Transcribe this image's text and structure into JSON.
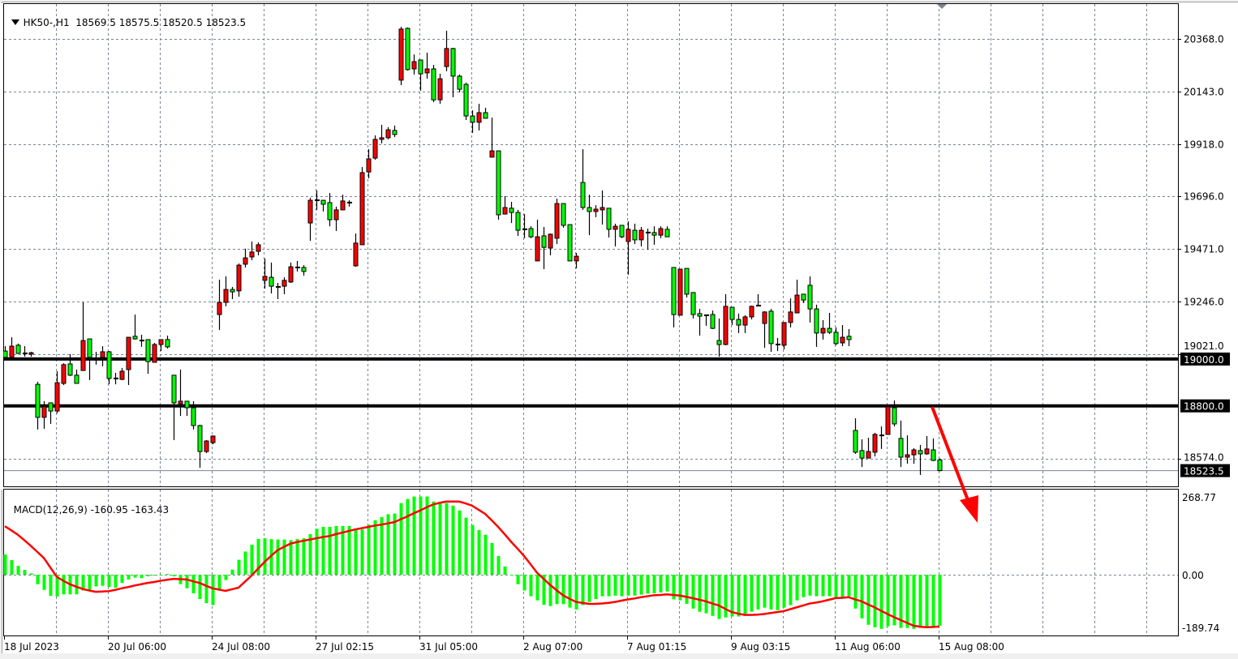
{
  "header": {
    "symbol_timeframe": "HK50-,H1",
    "ohlc": "18569.5 18575.5 18520.5 18523.5"
  },
  "macd_header": {
    "label": "MACD(12,26,9)",
    "main": "-160.95",
    "signal": "-163.43"
  },
  "chart_data": [
    {
      "type": "candlestick",
      "symbol": "HK50-",
      "timeframe": "H1",
      "bull_color": "#ff0000",
      "bear_color": "#00ff00",
      "grid": true,
      "price_ticks": [
        "20368.0",
        "20143.0",
        "19918.0",
        "19696.0",
        "19471.0",
        "19246.0",
        "19021.0",
        "18574.0"
      ],
      "horizontal_lines": [
        {
          "price": 19000,
          "label": "19000.0"
        },
        {
          "price": 18800,
          "label": "18800.0"
        }
      ],
      "last_price": {
        "price": 18523.5,
        "label": "18523.5"
      },
      "time_labels": [
        {
          "bar": 0,
          "text": "18 Jul 2023"
        },
        {
          "bar": 16,
          "text": "20 Jul 06:00"
        },
        {
          "bar": 32,
          "text": "24 Jul 08:00"
        },
        {
          "bar": 48,
          "text": "27 Jul 02:15"
        },
        {
          "bar": 64,
          "text": "31 Jul 05:00"
        },
        {
          "bar": 80,
          "text": "2 Aug 07:00"
        },
        {
          "bar": 96,
          "text": "7 Aug 01:15"
        },
        {
          "bar": 112,
          "text": "9 Aug 03:15"
        },
        {
          "bar": 128,
          "text": "11 Aug 06:00"
        },
        {
          "bar": 144,
          "text": "15 Aug 08:00"
        }
      ],
      "ohlc_fields": [
        "open",
        "high",
        "low",
        "close"
      ],
      "candles": [
        [
          19034,
          19055,
          19007,
          19007
        ],
        [
          19007,
          19093,
          19007,
          19055
        ],
        [
          19059,
          19066,
          19021,
          19024
        ],
        [
          19024,
          19055,
          19010,
          19024
        ],
        [
          19021,
          19031,
          19010,
          19027
        ],
        [
          18892,
          18903,
          18699,
          18751
        ],
        [
          18751,
          18820,
          18702,
          18796
        ],
        [
          18813,
          18813,
          18723,
          18778
        ],
        [
          18778,
          18948,
          18768,
          18899
        ],
        [
          18896,
          18982,
          18889,
          18976
        ],
        [
          18979,
          19021,
          18927,
          18931
        ],
        [
          18931,
          18955,
          18896,
          18896
        ],
        [
          18951,
          19242,
          18951,
          19079
        ],
        [
          19086,
          19086,
          18910,
          19007
        ],
        [
          19003,
          19031,
          18976,
          19002
        ],
        [
          19007,
          19055,
          18969,
          19031
        ],
        [
          19031,
          19034,
          18892,
          18917
        ],
        [
          18917,
          18941,
          18892,
          18917
        ],
        [
          18913,
          18962,
          18910,
          18948
        ],
        [
          18955,
          19093,
          18889,
          19093
        ],
        [
          19097,
          19190,
          19083,
          19086
        ],
        [
          19079,
          19104,
          19052,
          19079
        ],
        [
          19083,
          19083,
          18937,
          18989
        ],
        [
          18986,
          19069,
          18986,
          19062
        ],
        [
          19062,
          19083,
          19034,
          19083
        ],
        [
          19083,
          19100,
          19045,
          19052
        ],
        [
          18931,
          18931,
          18654,
          18813
        ],
        [
          18809,
          18955,
          18757,
          18820
        ],
        [
          18820,
          18820,
          18757,
          18792
        ],
        [
          18792,
          18820,
          18699,
          18716
        ],
        [
          18716,
          18719,
          18536,
          18605
        ],
        [
          18605,
          18654,
          18598,
          18650
        ],
        [
          18643,
          18674,
          18636,
          18671
        ],
        [
          19190,
          19339,
          19124,
          19242
        ],
        [
          19242,
          19353,
          19225,
          19297
        ],
        [
          19297,
          19308,
          19256,
          19287
        ],
        [
          19291,
          19408,
          19266,
          19401
        ],
        [
          19405,
          19471,
          19391,
          19432
        ],
        [
          19436,
          19502,
          19422,
          19457
        ],
        [
          19460,
          19498,
          19443,
          19488
        ],
        [
          19336,
          19429,
          19301,
          19353
        ],
        [
          19349,
          19412,
          19280,
          19311
        ],
        [
          19308,
          19325,
          19256,
          19308
        ],
        [
          19311,
          19349,
          19277,
          19336
        ],
        [
          19329,
          19412,
          19325,
          19394
        ],
        [
          19391,
          19419,
          19374,
          19391
        ],
        [
          19391,
          19401,
          19356,
          19374
        ],
        [
          19581,
          19689,
          19505,
          19678
        ],
        [
          19678,
          19720,
          19637,
          19678
        ],
        [
          19678,
          19678,
          19630,
          19661
        ],
        [
          19668,
          19709,
          19567,
          19595
        ],
        [
          19595,
          19651,
          19547,
          19637
        ],
        [
          19637,
          19702,
          19637,
          19675
        ],
        [
          19668,
          19678,
          19651,
          19667
        ],
        [
          19398,
          19536,
          19394,
          19495
        ],
        [
          19488,
          19820,
          19488,
          19796
        ],
        [
          19799,
          19896,
          19772,
          19855
        ],
        [
          19858,
          19955,
          19851,
          19938
        ],
        [
          19938,
          20000,
          19921,
          19945
        ],
        [
          19945,
          19990,
          19938,
          19979
        ],
        [
          19976,
          19997,
          19948,
          19959
        ],
        [
          20191,
          20419,
          20170,
          20409
        ],
        [
          20412,
          20416,
          20232,
          20236
        ],
        [
          20239,
          20301,
          20215,
          20270
        ],
        [
          20277,
          20277,
          20146,
          20218
        ],
        [
          20222,
          20308,
          20197,
          20239
        ],
        [
          20239,
          20256,
          20097,
          20107
        ],
        [
          20107,
          20218,
          20090,
          20197
        ],
        [
          20249,
          20402,
          20229,
          20326
        ],
        [
          20326,
          20329,
          20118,
          20208
        ],
        [
          20208,
          20215,
          20139,
          20152
        ],
        [
          20173,
          20180,
          20021,
          20038
        ],
        [
          20038,
          20062,
          19966,
          20011
        ],
        [
          20011,
          20090,
          19976,
          20052
        ],
        [
          20052,
          20073,
          20028,
          20028
        ],
        [
          19862,
          20031,
          19862,
          19889
        ],
        [
          19889,
          19889,
          19595,
          19616
        ],
        [
          19619,
          19696,
          19619,
          19647
        ],
        [
          19644,
          19671,
          19581,
          19626
        ],
        [
          19626,
          19637,
          19526,
          19550
        ],
        [
          19554,
          19619,
          19516,
          19554
        ],
        [
          19557,
          19567,
          19516,
          19522
        ],
        [
          19419,
          19595,
          19419,
          19522
        ],
        [
          19526,
          19564,
          19384,
          19477
        ],
        [
          19474,
          19536,
          19443,
          19533
        ],
        [
          19516,
          19685,
          19491,
          19664
        ],
        [
          19664,
          19664,
          19561,
          19571
        ],
        [
          19574,
          19574,
          19419,
          19419
        ],
        [
          19419,
          19453,
          19387,
          19439
        ],
        [
          19754,
          19896,
          19637,
          19647
        ],
        [
          19647,
          19702,
          19529,
          19630
        ],
        [
          19630,
          19657,
          19606,
          19640
        ],
        [
          19637,
          19720,
          19574,
          19647
        ],
        [
          19644,
          19644,
          19519,
          19554
        ],
        [
          19554,
          19578,
          19481,
          19567
        ],
        [
          19571,
          19571,
          19516,
          19522
        ],
        [
          19502,
          19588,
          19360,
          19554
        ],
        [
          19550,
          19578,
          19491,
          19509
        ],
        [
          19509,
          19564,
          19481,
          19550
        ],
        [
          19540,
          19557,
          19467,
          19540
        ],
        [
          19540,
          19567,
          19488,
          19529
        ],
        [
          19529,
          19567,
          19516,
          19557
        ],
        [
          19554,
          19567,
          19522,
          19522
        ],
        [
          19391,
          19391,
          19135,
          19190
        ],
        [
          19187,
          19384,
          19187,
          19384
        ],
        [
          19387,
          19387,
          19263,
          19277
        ],
        [
          19284,
          19284,
          19173,
          19190
        ],
        [
          19194,
          19214,
          19100,
          19183
        ],
        [
          19187,
          19187,
          19142,
          19187
        ],
        [
          19190,
          19207,
          19128,
          19131
        ],
        [
          19079,
          19173,
          19010,
          19062
        ],
        [
          19062,
          19277,
          19059,
          19225
        ],
        [
          19221,
          19221,
          19145,
          19169
        ],
        [
          19169,
          19194,
          19111,
          19145
        ],
        [
          19145,
          19187,
          19111,
          19180
        ],
        [
          19180,
          19228,
          19169,
          19225
        ],
        [
          19228,
          19277,
          19225,
          19228
        ],
        [
          19152,
          19204,
          19048,
          19201
        ],
        [
          19204,
          19214,
          19031,
          19066
        ],
        [
          19062,
          19090,
          19034,
          19062
        ],
        [
          19059,
          19156,
          19041,
          19156
        ],
        [
          19156,
          19259,
          19135,
          19201
        ],
        [
          19197,
          19339,
          19197,
          19273
        ],
        [
          19277,
          19277,
          19239,
          19252
        ],
        [
          19315,
          19353,
          19156,
          19214
        ],
        [
          19214,
          19232,
          19052,
          19111
        ],
        [
          19111,
          19166,
          19083,
          19131
        ],
        [
          19131,
          19197,
          19107,
          19114
        ],
        [
          19114,
          19135,
          19059,
          19066
        ],
        [
          19069,
          19145,
          19055,
          19093
        ],
        [
          19097,
          19128,
          19055,
          19083
        ],
        [
          18695,
          18747,
          18595,
          18602
        ],
        [
          18609,
          18657,
          18539,
          18577
        ],
        [
          18577,
          18664,
          18577,
          18605
        ],
        [
          18602,
          18685,
          18584,
          18678
        ],
        [
          18674,
          18712,
          18616,
          18674
        ],
        [
          18678,
          18799,
          18678,
          18796
        ],
        [
          18792,
          18823,
          18712,
          18723
        ],
        [
          18661,
          18737,
          18539,
          18581
        ],
        [
          18581,
          18674,
          18553,
          18591
        ],
        [
          18591,
          18619,
          18553,
          18612
        ],
        [
          18609,
          18633,
          18505,
          18595
        ],
        [
          18595,
          18671,
          18591,
          18616
        ],
        [
          18612,
          18661,
          18564,
          18567
        ],
        [
          18569.5,
          18575.5,
          18520.5,
          18523.5
        ]
      ]
    },
    {
      "type": "bar",
      "indicator": "MACD(12,26,9)",
      "histogram_color": "#00ff00",
      "signal_color": "#ff0000",
      "ylim": [
        -189.74,
        268.77
      ],
      "axis_labels": [
        "268.77",
        "0.00",
        "-189.74"
      ],
      "main": [
        64,
        46,
        28,
        15,
        4,
        -30,
        -48,
        -67,
        -69,
        -62,
        -62,
        -62,
        -50,
        -48,
        -37,
        -35,
        -39,
        -41,
        -26,
        -15,
        -9,
        -11,
        -5,
        -3,
        0,
        2,
        -5,
        -30,
        -43,
        -59,
        -77,
        -90,
        -96,
        -48,
        -17,
        16,
        47,
        73,
        95,
        113,
        115,
        112,
        111,
        111,
        109,
        112,
        115,
        128,
        145,
        151,
        151,
        154,
        154,
        154,
        143,
        143,
        158,
        172,
        182,
        191,
        193,
        226,
        239,
        247,
        247,
        247,
        231,
        226,
        226,
        218,
        203,
        180,
        157,
        141,
        126,
        100,
        59,
        26,
        0,
        -30,
        -50,
        -68,
        -81,
        -95,
        -99,
        -93,
        -93,
        -104,
        -110,
        -96,
        -86,
        -77,
        -68,
        -68,
        -66,
        -68,
        -66,
        -66,
        -63,
        -60,
        -59,
        -56,
        -53,
        -78,
        -81,
        -92,
        -107,
        -117,
        -122,
        -130,
        -140,
        -135,
        -132,
        -132,
        -125,
        -117,
        -110,
        -104,
        -110,
        -112,
        -104,
        -96,
        -81,
        -71,
        -66,
        -68,
        -68,
        -68,
        -74,
        -71,
        -68,
        -107,
        -138,
        -158,
        -166,
        -171,
        -163,
        -160,
        -168,
        -168,
        -171,
        -168,
        -166,
        -166,
        -160.95
      ],
      "signal": [
        153,
        140,
        126,
        109,
        91,
        72,
        53,
        23,
        -7,
        -19,
        -30,
        -38,
        -45,
        -50,
        -54,
        -53,
        -52,
        -48,
        -43,
        -39,
        -34,
        -30,
        -26,
        -23,
        -19,
        -16,
        -13,
        -14,
        -15,
        -21,
        -26,
        -35,
        -43,
        -47,
        -51,
        -46,
        -41,
        -22,
        -3,
        19,
        40,
        59,
        77,
        88,
        98,
        103,
        107,
        111,
        115,
        119,
        122,
        128,
        133,
        138,
        143,
        147,
        151,
        155,
        158,
        162,
        166,
        175,
        184,
        194,
        203,
        213,
        222,
        227,
        231,
        231,
        231,
        225,
        218,
        205,
        192,
        172,
        151,
        128,
        104,
        82,
        59,
        33,
        6,
        -13,
        -32,
        -49,
        -65,
        -76,
        -86,
        -89,
        -92,
        -92,
        -91,
        -89,
        -86,
        -82,
        -78,
        -75,
        -71,
        -68,
        -65,
        -64,
        -62,
        -64,
        -66,
        -70,
        -74,
        -79,
        -84,
        -91,
        -97,
        -108,
        -118,
        -123,
        -127,
        -127,
        -126,
        -124,
        -121,
        -118,
        -115,
        -109,
        -103,
        -97,
        -91,
        -88,
        -84,
        -79,
        -74,
        -73,
        -71,
        -78,
        -84,
        -94,
        -103,
        -114,
        -124,
        -134,
        -143,
        -152,
        -161,
        -164,
        -166,
        -165,
        -163.43
      ]
    }
  ]
}
